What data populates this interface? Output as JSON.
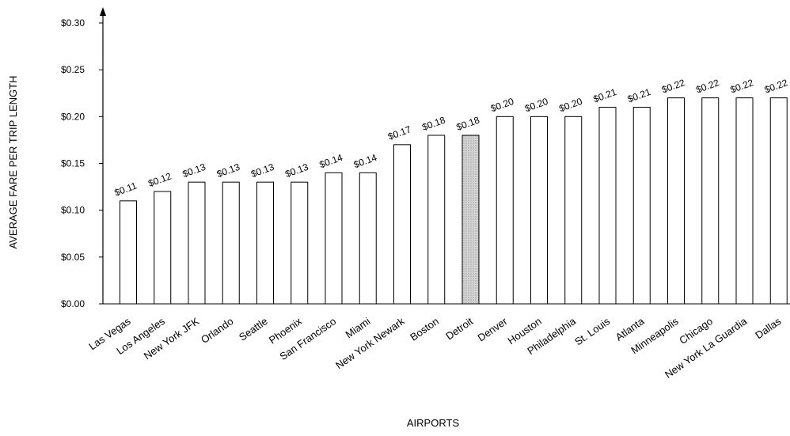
{
  "chart_data": {
    "type": "bar",
    "xlabel": "AIRPORTS",
    "ylabel": "AVERAGE FARE PER TRIP LENGTH",
    "ylim": [
      0,
      0.3
    ],
    "yticks": [
      "$0.00",
      "$0.05",
      "$0.10",
      "$0.15",
      "$0.20",
      "$0.25",
      "$0.30"
    ],
    "categories": [
      "Las Vegas",
      "Los Angeles",
      "New York JFK",
      "Orlando",
      "Seattle",
      "Phoenix",
      "San Francisco",
      "Miami",
      "New York Newark",
      "Boston",
      "Detroit",
      "Denver",
      "Houston",
      "Philadelphia",
      "St. Louis",
      "Atlanta",
      "Minneapolis",
      "Chicago",
      "New York La Guardia",
      "Dallas"
    ],
    "values": [
      0.11,
      0.12,
      0.13,
      0.13,
      0.13,
      0.13,
      0.14,
      0.14,
      0.17,
      0.18,
      0.18,
      0.2,
      0.2,
      0.2,
      0.21,
      0.21,
      0.22,
      0.22,
      0.22,
      0.22
    ],
    "data_labels": [
      "$0.11",
      "$0.12",
      "$0.13",
      "$0.13",
      "$0.13",
      "$0.13",
      "$0.14",
      "$0.14",
      "$0.17",
      "$0.18",
      "$0.18",
      "$0.20",
      "$0.20",
      "$0.20",
      "$0.21",
      "$0.21",
      "$0.22",
      "$0.22",
      "$0.22",
      "$0.22"
    ],
    "highlight_category": "Detroit",
    "grid": false,
    "colors": {
      "bar_fill": "#ffffff",
      "highlight_fill": "#c8c8c8",
      "stroke": "#000000"
    }
  }
}
